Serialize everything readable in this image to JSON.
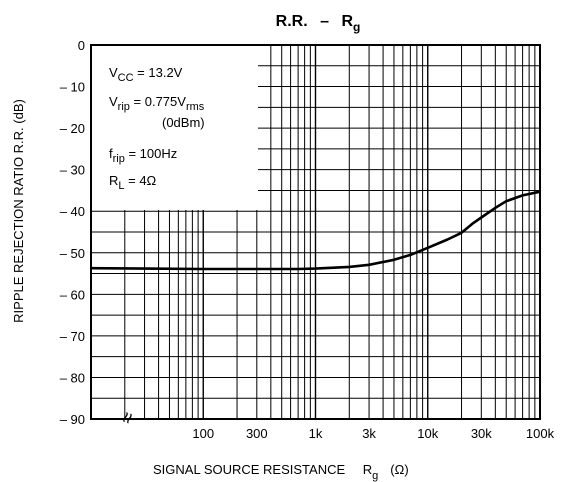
{
  "chart_data": {
    "type": "line",
    "title": "R.R. – Rg",
    "title_main": "R.R.",
    "title_dash": "–",
    "title_r": "R",
    "title_sub": "g",
    "xlabel_main": "SIGNAL SOURCE RESISTANCE",
    "xlabel_r": "R",
    "xlabel_sub": "g",
    "xlabel_unit": "(Ω)",
    "ylabel": "RIPPLE REJECTION RATIO   R.R.   (dB)",
    "xscale": "log",
    "xlim": [
      10,
      100000
    ],
    "ylim": [
      -90,
      0
    ],
    "y_ticks": [
      "0",
      "– 10",
      "– 20",
      "– 30",
      "– 40",
      "– 50",
      "– 60",
      "– 70",
      "– 80",
      "– 90"
    ],
    "x_ticks": [
      {
        "value": 100,
        "label": "100"
      },
      {
        "value": 300,
        "label": "300"
      },
      {
        "value": 1000,
        "label": "1k"
      },
      {
        "value": 3000,
        "label": "3k"
      },
      {
        "value": 10000,
        "label": "10k"
      },
      {
        "value": 30000,
        "label": "30k"
      },
      {
        "value": 100000,
        "label": "100k"
      }
    ],
    "axis_break_label": "≈",
    "grid": true,
    "conditions": [
      {
        "main": "V",
        "sub": "CC",
        "rest": " = 13.2V"
      },
      {
        "main": "V",
        "sub": "rip",
        "rest": " = 0.775V",
        "sub2": "rms"
      },
      {
        "main": "",
        "sub": "",
        "rest": "(0dBm)"
      },
      {
        "main": "f",
        "sub": "rip",
        "rest": " = 100Hz"
      },
      {
        "main": "R",
        "sub": "L",
        "rest": " = 4Ω"
      }
    ],
    "series": [
      {
        "x": [
          10,
          30,
          100,
          300,
          700,
          1000,
          2000,
          3000,
          5000,
          7000,
          10000,
          15000,
          20000,
          25000,
          30000,
          40000,
          50000,
          70000,
          100000
        ],
        "y": [
          -53.7,
          -53.8,
          -53.9,
          -53.9,
          -53.9,
          -53.8,
          -53.4,
          -52.9,
          -51.7,
          -50.5,
          -48.8,
          -46.8,
          -45.2,
          -43.0,
          -41.5,
          -39.2,
          -37.6,
          -36.2,
          -35.3
        ]
      }
    ]
  }
}
